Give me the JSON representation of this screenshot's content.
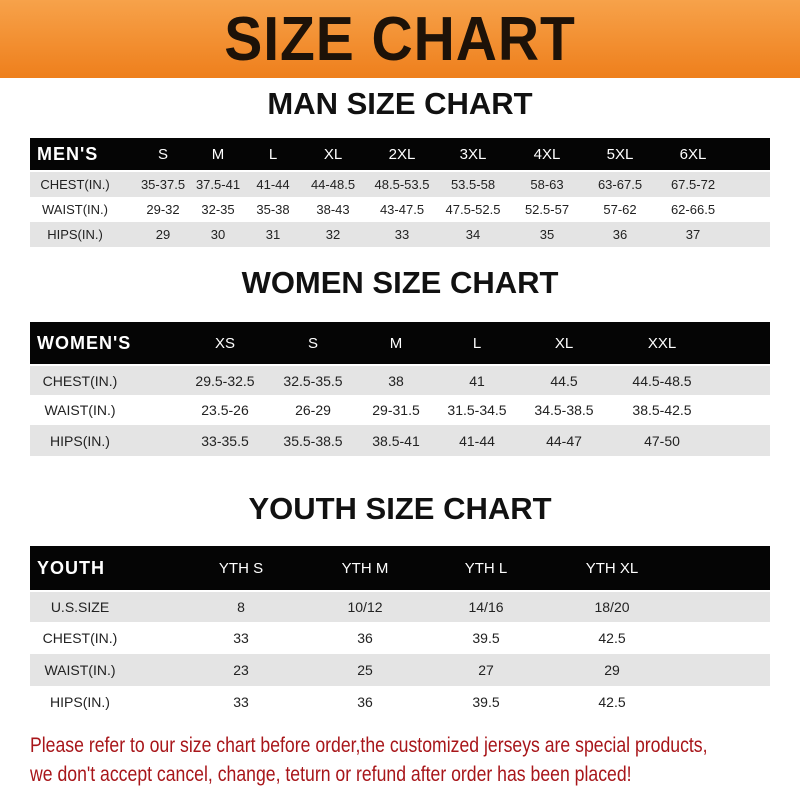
{
  "banner": {
    "title": "SIZE CHART",
    "color": "#f08a24"
  },
  "men": {
    "title": "MAN SIZE CHART",
    "header": [
      "MEN'S",
      "S",
      "M",
      "L",
      "XL",
      "2XL",
      "3XL",
      "4XL",
      "5XL",
      "6XL"
    ],
    "rows": [
      [
        "CHEST(IN.)",
        "35-37.5",
        "37.5-41",
        "41-44",
        "44-48.5",
        "48.5-53.5",
        "53.5-58",
        "58-63",
        "63-67.5",
        "67.5-72"
      ],
      [
        "WAIST(IN.)",
        "29-32",
        "32-35",
        "35-38",
        "38-43",
        "43-47.5",
        "47.5-52.5",
        "52.5-57",
        "57-62",
        "62-66.5"
      ],
      [
        "HIPS(IN.)",
        "29",
        "30",
        "31",
        "32",
        "33",
        "34",
        "35",
        "36",
        "37"
      ]
    ]
  },
  "women": {
    "title": "WOMEN SIZE CHART",
    "header": [
      "WOMEN'S",
      "XS",
      "S",
      "M",
      "L",
      "XL",
      "XXL"
    ],
    "rows": [
      [
        "CHEST(IN.)",
        "29.5-32.5",
        "32.5-35.5",
        "38",
        "41",
        "44.5",
        "44.5-48.5"
      ],
      [
        "WAIST(IN.)",
        "23.5-26",
        "26-29",
        "29-31.5",
        "31.5-34.5",
        "34.5-38.5",
        "38.5-42.5"
      ],
      [
        "HIPS(IN.)",
        "33-35.5",
        "35.5-38.5",
        "38.5-41",
        "41-44",
        "44-47",
        "47-50"
      ]
    ]
  },
  "youth": {
    "title": "YOUTH SIZE CHART",
    "header": [
      "YOUTH",
      "YTH S",
      "YTH M",
      "YTH L",
      "YTH XL"
    ],
    "rows": [
      [
        "U.S.SIZE",
        "8",
        "10/12",
        "14/16",
        "18/20"
      ],
      [
        "CHEST(IN.)",
        "33",
        "36",
        "39.5",
        "42.5"
      ],
      [
        "WAIST(IN.)",
        "23",
        "25",
        "27",
        "29"
      ],
      [
        "HIPS(IN.)",
        "33",
        "36",
        "39.5",
        "42.5"
      ]
    ]
  },
  "footer": {
    "line1": "Please refer to our size chart before order,the customized jerseys are special products,",
    "line2": "we don't accept cancel, change, teturn or refund after order has been placed!",
    "color": "#a8161a"
  }
}
